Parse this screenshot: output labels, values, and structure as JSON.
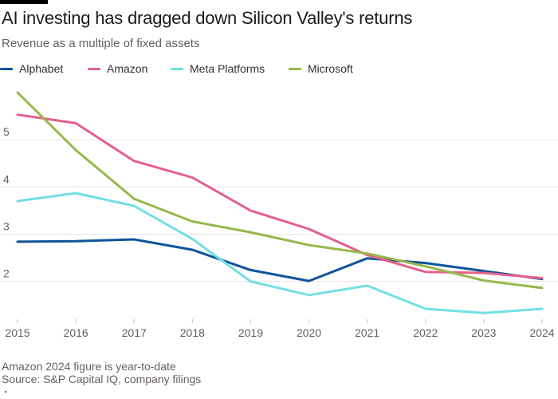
{
  "header": {
    "title": "AI investing has dragged down Silicon Valley's returns",
    "subtitle": "Revenue as a multiple of fixed assets"
  },
  "legend": [
    {
      "label": "Alphabet",
      "color": "#0f5499"
    },
    {
      "label": "Amazon",
      "color": "#e5608a"
    },
    {
      "label": "Meta Platforms",
      "color": "#72dfe6"
    },
    {
      "label": "Microsoft",
      "color": "#96b84b"
    }
  ],
  "chart_data": {
    "type": "line",
    "title": "AI investing has dragged down Silicon Valley's returns",
    "subtitle": "Revenue as a multiple of fixed assets",
    "xlabel": "",
    "ylabel": "",
    "x": [
      2015,
      2016,
      2017,
      2018,
      2019,
      2020,
      2021,
      2022,
      2023,
      2024
    ],
    "x_tick_labels": [
      "2015",
      "2016",
      "2017",
      "2018",
      "2019",
      "2020",
      "2021",
      "2022",
      "2023",
      "2024"
    ],
    "y_ticks": [
      2,
      3,
      4,
      5
    ],
    "y_tick_labels": [
      "2",
      "3",
      "4",
      "5"
    ],
    "ylim": [
      1.2,
      6.1
    ],
    "grid": true,
    "legend_position": "top-left",
    "series": [
      {
        "name": "Alphabet",
        "color": "#0f5499",
        "values": [
          2.84,
          2.85,
          2.89,
          2.67,
          2.24,
          2.01,
          2.49,
          2.39,
          2.22,
          2.05
        ]
      },
      {
        "name": "Amazon",
        "color": "#e5608a",
        "values": [
          5.53,
          5.35,
          4.55,
          4.2,
          3.5,
          3.11,
          2.56,
          2.2,
          2.18,
          2.07
        ]
      },
      {
        "name": "Meta Platforms",
        "color": "#72dfe6",
        "values": [
          3.7,
          3.87,
          3.6,
          2.9,
          2.0,
          1.71,
          1.91,
          1.42,
          1.33,
          1.42
        ]
      },
      {
        "name": "Microsoft",
        "color": "#96b84b",
        "values": [
          6.0,
          4.78,
          3.75,
          3.27,
          3.04,
          2.77,
          2.59,
          2.32,
          2.02,
          1.86
        ]
      }
    ]
  },
  "footer": {
    "note": "Amazon 2024 figure is year-to-date",
    "source": "Source: S&P Capital IQ, company filings"
  }
}
